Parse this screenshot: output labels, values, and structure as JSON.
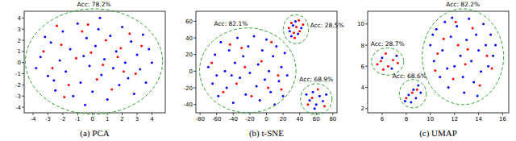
{
  "chart_data": [
    {
      "type": "scatter",
      "title": "(a) PCA",
      "xlim": [
        -4.6,
        4.9
      ],
      "ylim": [
        -4.5,
        4.6
      ],
      "xticks": [
        -4,
        -3,
        -2,
        -1,
        0,
        1,
        2,
        3,
        4
      ],
      "yticks": [
        -4,
        -3,
        -2,
        -1,
        0,
        1,
        2,
        3,
        4
      ],
      "clusters": [
        {
          "label": "Acc: 78.2%",
          "series": [
            {
              "color": "#0000ff",
              "x": [
                -3.5,
                -3.0,
                -2.8,
                -2.5,
                -2.2,
                -2.0,
                -1.8,
                -1.5,
                -1.3,
                -1.0,
                -0.8,
                -0.6,
                -0.4,
                -0.2,
                0.0,
                0.2,
                0.4,
                0.6,
                0.8,
                1.0,
                1.2,
                1.4,
                1.6,
                1.8,
                2.0,
                2.2,
                2.4,
                2.6,
                2.8,
                3.0,
                3.2,
                3.4,
                3.6,
                3.8,
                4.0,
                -3.8,
                -3.2,
                -2.6,
                0.5,
                -0.5
              ],
              "values": [
                0.5,
                -1.2,
                1.8,
                -2.5,
                0.2,
                2.8,
                -0.8,
                1.2,
                -3.0,
                3.5,
                -1.8,
                0.6,
                2.2,
                -0.3,
                -2.6,
                1.5,
                3.0,
                -1.1,
                0.3,
                -3.3,
                2.4,
                -0.5,
                1.0,
                -2.0,
                3.2,
                0.0,
                -1.4,
                1.9,
                -2.8,
                0.7,
                -0.6,
                2.5,
                -1.8,
                1.2,
                0.0,
                -0.5,
                2.3,
                -1.6,
                4.0,
                -3.8
              ]
            },
            {
              "color": "#ff0000",
              "x": [
                -3.3,
                -2.7,
                -2.1,
                -1.6,
                -1.1,
                -0.7,
                -0.1,
                0.3,
                0.9,
                1.3,
                1.7,
                2.1,
                2.5,
                2.9,
                3.3,
                -1.9,
                0.7,
                -0.3,
                1.9,
                -2.4
              ],
              "values": [
                1.0,
                -0.5,
                1.6,
                -2.0,
                0.4,
                2.8,
                0.9,
                -1.5,
                2.0,
                -2.4,
                0.5,
                -0.8,
                2.6,
                -1.0,
                1.5,
                -3.1,
                -0.2,
                3.4,
                1.3,
                3.3
              ]
            }
          ]
        }
      ]
    },
    {
      "type": "scatter",
      "title": "(b) t-SNE",
      "xlim": [
        -85,
        85
      ],
      "ylim": [
        -50,
        72
      ],
      "xticks": [
        -80,
        -60,
        -40,
        -20,
        0,
        20,
        40,
        60,
        80
      ],
      "yticks": [
        -40,
        -20,
        0,
        20,
        40,
        60
      ],
      "clusters": [
        {
          "label": "Acc: 82.1%",
          "series": [
            {
              "color": "#0000ff",
              "x": [
                -70,
                -65,
                -62,
                -58,
                -55,
                -50,
                -48,
                -45,
                -40,
                -38,
                -35,
                -32,
                -28,
                -25,
                -22,
                -20,
                -15,
                -12,
                -10,
                -8,
                -5,
                -2,
                0,
                3,
                5,
                8,
                10,
                12,
                15,
                18,
                20,
                22,
                -60,
                -42,
                25
              ],
              "values": [
                5,
                -15,
                20,
                -30,
                35,
                0,
                -20,
                25,
                -38,
                10,
                40,
                -8,
                18,
                -28,
                30,
                -2,
                42,
                -18,
                8,
                -35,
                25,
                -10,
                38,
                0,
                -25,
                18,
                -40,
                30,
                -12,
                5,
                -30,
                22,
                -5,
                -5,
                -5
              ]
            },
            {
              "color": "#ff0000",
              "x": [
                -66,
                -52,
                -44,
                -36,
                -26,
                -18,
                -6,
                2,
                6,
                14,
                -30,
                18
              ],
              "values": [
                10,
                -25,
                32,
                -15,
                5,
                -30,
                12,
                -20,
                35,
                -5,
                28,
                -22
              ]
            }
          ]
        },
        {
          "label": "Acc: 28.5%",
          "series": [
            {
              "color": "#0000ff",
              "x": [
                28,
                32,
                38,
                42,
                35,
                30
              ],
              "values": [
                48,
                55,
                45,
                52,
                60,
                42
              ]
            },
            {
              "color": "#ff0000",
              "x": [
                27,
                30,
                33,
                36,
                40,
                44,
                34,
                39
              ],
              "values": [
                52,
                58,
                46,
                53,
                48,
                56,
                40,
                61
              ]
            }
          ]
        },
        {
          "label": "Acc: 68.9%",
          "series": [
            {
              "color": "#0000ff",
              "x": [
                48,
                52,
                56,
                60,
                64,
                68,
                72,
                58
              ],
              "values": [
                -28,
                -35,
                -25,
                -40,
                -30,
                -36,
                -28,
                -45
              ]
            },
            {
              "color": "#ff0000",
              "x": [
                50,
                55,
                62,
                70
              ],
              "values": [
                -40,
                -32,
                -22,
                -42
              ]
            }
          ]
        }
      ]
    },
    {
      "type": "scatter",
      "title": "(c) UMAP",
      "xlim": [
        4.8,
        16.5
      ],
      "ylim": [
        1.6,
        11.2
      ],
      "xticks": [
        6,
        8,
        10,
        12,
        14,
        16
      ],
      "yticks": [
        2,
        4,
        6,
        8,
        10
      ],
      "clusters": [
        {
          "label": "Acc: 82.2%",
          "series": [
            {
              "color": "#0000ff",
              "x": [
                10,
                10.3,
                10.5,
                10.8,
                11,
                11.2,
                11.5,
                11.7,
                12,
                12.2,
                12.5,
                12.7,
                13,
                13.2,
                13.4,
                13.6,
                13.8,
                14,
                14.2,
                14.4,
                14.6,
                14.8,
                15,
                15.2,
                11.4,
                12.8,
                10.2,
                13.9,
                11.8,
                15.4
              ],
              "values": [
                8,
                6.5,
                9.5,
                5,
                7.5,
                10.2,
                4,
                8.8,
                6,
                9.8,
                7,
                5,
                8.5,
                10.5,
                6.5,
                4.5,
                9,
                7.5,
                5.5,
                10,
                8,
                6,
                9,
                7,
                5.8,
                3.5,
                9,
                3.2,
                10.6,
                8
              ]
            },
            {
              "color": "#ff0000",
              "x": [
                10.6,
                11.1,
                11.9,
                12.3,
                12.9,
                13.5,
                14.1,
                14.7,
                10.4,
                13.1,
                15.1,
                12.1
              ],
              "values": [
                7.2,
                8.6,
                4.8,
                8,
                6.2,
                9.6,
                4.2,
                7,
                5.6,
                7.6,
                5.8,
                10.2
              ]
            }
          ]
        },
        {
          "label": "Acc: 28.7%",
          "series": [
            {
              "color": "#0000ff",
              "x": [
                6.0,
                6.8,
                7.2
              ],
              "values": [
                6.8,
                5.8,
                7.0
              ]
            },
            {
              "color": "#ff0000",
              "x": [
                5.6,
                5.9,
                6.3,
                6.5,
                6.9,
                7.3,
                6.1
              ],
              "values": [
                6.2,
                6.5,
                7.2,
                6.0,
                6.6,
                6.3,
                5.7
              ]
            }
          ]
        },
        {
          "label": "Acc: 68.6%",
          "series": [
            {
              "color": "#0000ff",
              "x": [
                7.9,
                8.2,
                8.4,
                8.6,
                8.8,
                9.0,
                9.2
              ],
              "values": [
                2.7,
                3.3,
                2.6,
                3.8,
                3.0,
                4.2,
                3.5
              ]
            },
            {
              "color": "#ff0000",
              "x": [
                8.0,
                8.5,
                8.9
              ],
              "values": [
                3.0,
                3.5,
                3.8
              ]
            }
          ]
        }
      ]
    }
  ]
}
